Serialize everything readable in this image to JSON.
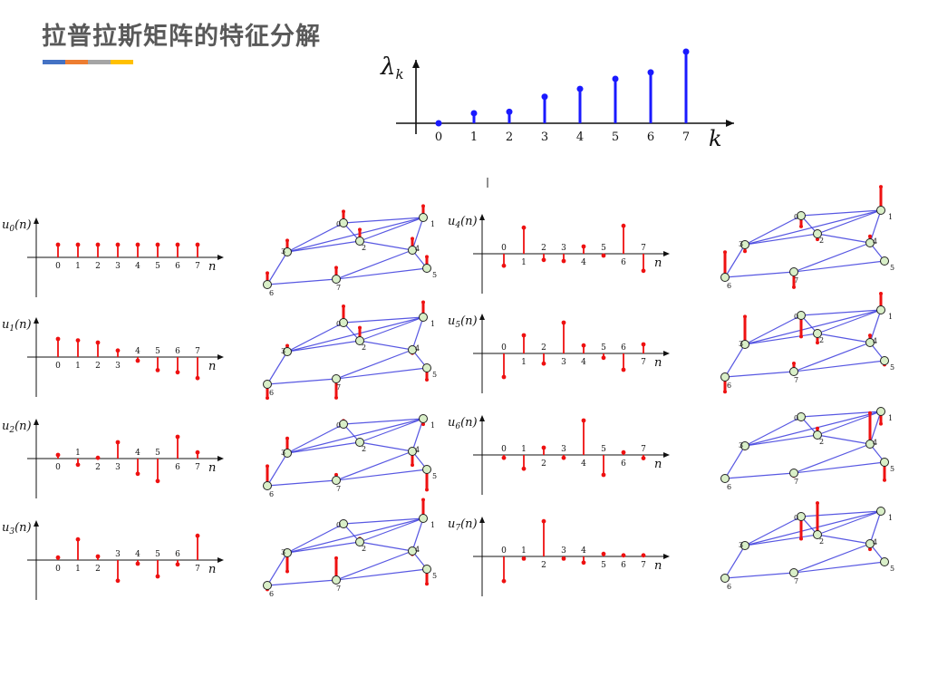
{
  "title": "拉普拉斯矩阵的特征分解",
  "accent_colors": [
    "#4472C4",
    "#ED7D31",
    "#A5A5A5",
    "#FFC000"
  ],
  "colors": {
    "signal": "#ee1111",
    "eigen": "#1a1aff",
    "edge": "#3b3bdd",
    "node_fill": "#d9efc8",
    "axis": "#111111"
  },
  "eigen_plot": {
    "ylabel": "λ",
    "ylabel_sub": "k",
    "xlabel": "k",
    "ticks": [
      "0",
      "1",
      "2",
      "3",
      "4",
      "5",
      "6",
      "7"
    ]
  },
  "eigenvalues": [
    0,
    0.14,
    0.16,
    0.37,
    0.48,
    0.62,
    0.71,
    1.0
  ],
  "n_label": "n",
  "series": [
    {
      "name": "u",
      "sub": "0",
      "values": [
        0.35,
        0.35,
        0.35,
        0.35,
        0.35,
        0.35,
        0.35,
        0.35
      ]
    },
    {
      "name": "u",
      "sub": "1",
      "values": [
        0.5,
        0.46,
        0.4,
        0.18,
        -0.1,
        -0.36,
        -0.42,
        -0.58
      ]
    },
    {
      "name": "u",
      "sub": "2",
      "values": [
        0.1,
        -0.17,
        0.02,
        0.45,
        -0.42,
        -0.62,
        0.6,
        0.17
      ]
    },
    {
      "name": "u",
      "sub": "3",
      "values": [
        0.07,
        0.57,
        0.1,
        -0.57,
        -0.1,
        -0.45,
        -0.12,
        0.67
      ]
    },
    {
      "name": "u",
      "sub": "4",
      "values": [
        -0.33,
        0.72,
        -0.17,
        -0.2,
        0.2,
        -0.05,
        0.77,
        -0.47
      ]
    },
    {
      "name": "u",
      "sub": "5",
      "values": [
        -0.65,
        0.5,
        -0.28,
        0.85,
        0.22,
        -0.12,
        -0.45,
        0.25
      ]
    },
    {
      "name": "u",
      "sub": "6",
      "values": [
        -0.08,
        -0.38,
        0.2,
        -0.08,
        0.95,
        -0.55,
        0.07,
        -0.09
      ]
    },
    {
      "name": "u",
      "sub": "7",
      "values": [
        -0.68,
        -0.06,
        0.97,
        -0.06,
        -0.17,
        0.07,
        0.03,
        0.03
      ]
    }
  ],
  "graph_nodes": [
    "0",
    "1",
    "2",
    "3",
    "4",
    "5",
    "6",
    "7"
  ]
}
